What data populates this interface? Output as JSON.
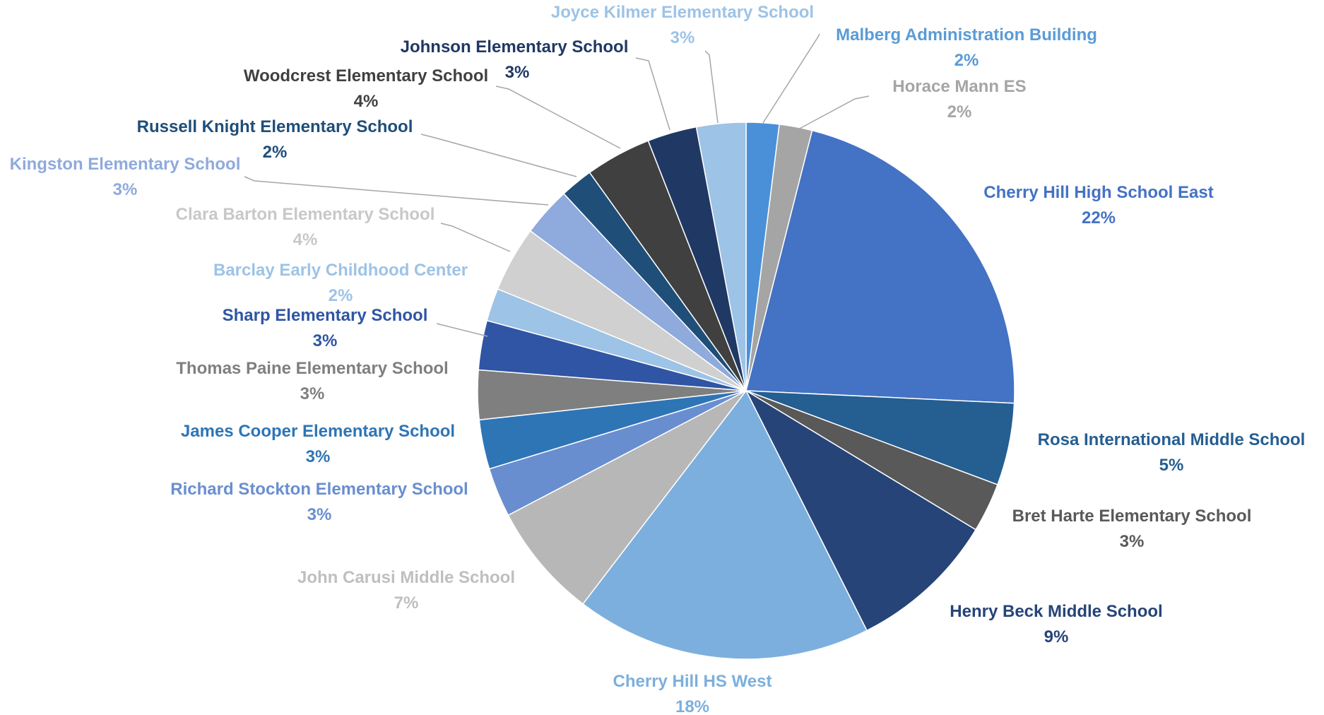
{
  "chart_data": {
    "type": "pie",
    "title": "",
    "legend": "none",
    "slices": [
      {
        "name": "Malberg Administration Building",
        "value": 2,
        "label": "2%",
        "color": "#4a90d9",
        "label_color": "#5b9bd5"
      },
      {
        "name": "Horace Mann ES",
        "value": 2,
        "label": "2%",
        "color": "#a5a5a5",
        "label_color": "#a5a5a5"
      },
      {
        "name": "Cherry Hill High School East",
        "value": 22,
        "label": "22%",
        "color": "#4472c4",
        "label_color": "#4472c4"
      },
      {
        "name": "Rosa International Middle School",
        "value": 5,
        "label": "5%",
        "color": "#255e91",
        "label_color": "#255e91"
      },
      {
        "name": "Bret Harte Elementary School",
        "value": 3,
        "label": "3%",
        "color": "#595959",
        "label_color": "#595959"
      },
      {
        "name": "Henry Beck Middle School",
        "value": 9,
        "label": "9%",
        "color": "#264478",
        "label_color": "#264478"
      },
      {
        "name": "Cherry Hill HS West",
        "value": 18,
        "label": "18%",
        "color": "#7cafdd",
        "label_color": "#7cafdd"
      },
      {
        "name": "John Carusi Middle School",
        "value": 7,
        "label": "7%",
        "color": "#b7b7b7",
        "label_color": "#bfbfbf"
      },
      {
        "name": "Richard Stockton Elementary School",
        "value": 3,
        "label": "3%",
        "color": "#698ed0",
        "label_color": "#698ed0"
      },
      {
        "name": "James Cooper Elementary School",
        "value": 3,
        "label": "3%",
        "color": "#2e75b6",
        "label_color": "#2e75b6"
      },
      {
        "name": "Thomas Paine Elementary School",
        "value": 3,
        "label": "3%",
        "color": "#7f7f7f",
        "label_color": "#7f7f7f"
      },
      {
        "name": "Sharp Elementary School",
        "value": 3,
        "label": "3%",
        "color": "#2f55a4",
        "label_color": "#2f55a4"
      },
      {
        "name": "Barclay Early Childhood Center",
        "value": 2,
        "label": "2%",
        "color": "#9dc3e6",
        "label_color": "#9dc3e6"
      },
      {
        "name": "Clara Barton Elementary School",
        "value": 4,
        "label": "4%",
        "color": "#d0d0d0",
        "label_color": "#c8c8c8"
      },
      {
        "name": "Kingston Elementary School",
        "value": 3,
        "label": "3%",
        "color": "#8faadc",
        "label_color": "#8faadc"
      },
      {
        "name": "Russell Knight Elementary School",
        "value": 2,
        "label": "2%",
        "color": "#1f4e79",
        "label_color": "#1f4e79"
      },
      {
        "name": "Woodcrest Elementary School",
        "value": 4,
        "label": "4%",
        "color": "#404040",
        "label_color": "#404040"
      },
      {
        "name": "Johnson Elementary School",
        "value": 3,
        "label": "3%",
        "color": "#203864",
        "label_color": "#203864"
      },
      {
        "name": "Joyce Kilmer Elementary School",
        "value": 3,
        "label": "3%",
        "color": "#9dc3e6",
        "label_color": "#9dc3e6"
      }
    ]
  }
}
